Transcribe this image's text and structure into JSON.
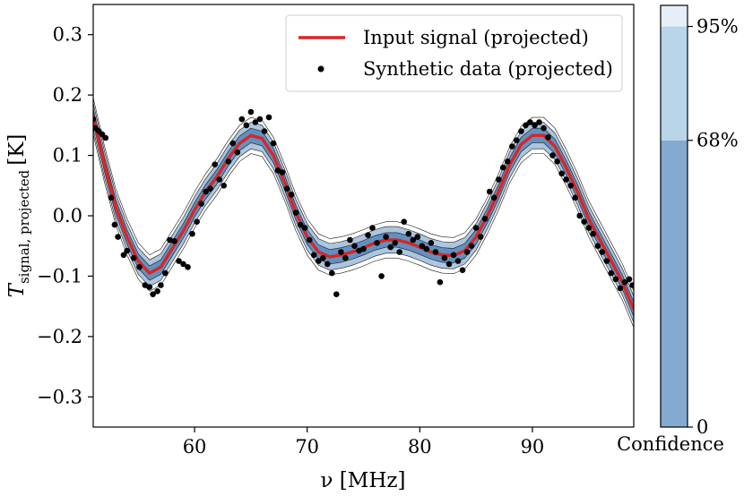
{
  "chart_data": {
    "type": "line",
    "xlabel": "ν [MHz]",
    "ylabel": {
      "main": "T",
      "subscript": "signal, projected",
      "unit": "[K]"
    },
    "xlim": [
      51,
      99
    ],
    "ylim": [
      -0.35,
      0.35
    ],
    "x_ticks": [
      {
        "value": 60,
        "label": "60"
      },
      {
        "value": 70,
        "label": "70"
      },
      {
        "value": 80,
        "label": "80"
      },
      {
        "value": 90,
        "label": "90"
      }
    ],
    "y_ticks": [
      {
        "value": 0.3,
        "label": "0.3"
      },
      {
        "value": 0.2,
        "label": "0.2"
      },
      {
        "value": 0.1,
        "label": "0.1"
      },
      {
        "value": 0.0,
        "label": "0.0"
      },
      {
        "value": -0.1,
        "label": "−0.1"
      },
      {
        "value": -0.2,
        "label": "−0.2"
      },
      {
        "value": -0.3,
        "label": "−0.3"
      }
    ],
    "grid": false,
    "legend_position": "top-right",
    "legend": [
      {
        "label": "Input signal (projected)",
        "kind": "line",
        "color": "#d62728"
      },
      {
        "label": "Synthetic data (projected)",
        "kind": "dot",
        "color": "#000000"
      }
    ],
    "series": [
      {
        "name": "Input signal (projected)",
        "color": "#d62728",
        "points": [
          [
            51.0,
            0.165
          ],
          [
            52.0,
            0.085
          ],
          [
            53.0,
            0.015
          ],
          [
            54.0,
            -0.035
          ],
          [
            55.0,
            -0.075
          ],
          [
            56.0,
            -0.095
          ],
          [
            57.0,
            -0.085
          ],
          [
            58.0,
            -0.055
          ],
          [
            59.0,
            -0.025
          ],
          [
            60.0,
            0.01
          ],
          [
            61.0,
            0.04
          ],
          [
            62.0,
            0.065
          ],
          [
            63.0,
            0.095
          ],
          [
            64.0,
            0.12
          ],
          [
            65.0,
            0.133
          ],
          [
            66.0,
            0.128
          ],
          [
            67.0,
            0.1
          ],
          [
            68.0,
            0.055
          ],
          [
            69.0,
            0.005
          ],
          [
            70.0,
            -0.035
          ],
          [
            71.0,
            -0.06
          ],
          [
            72.0,
            -0.068
          ],
          [
            73.0,
            -0.065
          ],
          [
            74.0,
            -0.06
          ],
          [
            75.0,
            -0.053
          ],
          [
            76.0,
            -0.045
          ],
          [
            77.0,
            -0.04
          ],
          [
            78.0,
            -0.04
          ],
          [
            79.0,
            -0.045
          ],
          [
            80.0,
            -0.052
          ],
          [
            81.0,
            -0.06
          ],
          [
            82.0,
            -0.065
          ],
          [
            83.0,
            -0.066
          ],
          [
            84.0,
            -0.058
          ],
          [
            85.0,
            -0.035
          ],
          [
            86.0,
            0.0
          ],
          [
            87.0,
            0.04
          ],
          [
            88.0,
            0.085
          ],
          [
            89.0,
            0.118
          ],
          [
            90.0,
            0.133
          ],
          [
            91.0,
            0.133
          ],
          [
            92.0,
            0.115
          ],
          [
            93.0,
            0.08
          ],
          [
            94.0,
            0.04
          ],
          [
            95.0,
            -0.005
          ],
          [
            96.0,
            -0.04
          ],
          [
            97.0,
            -0.075
          ],
          [
            98.0,
            -0.11
          ],
          [
            99.0,
            -0.155
          ]
        ]
      },
      {
        "name": "Synthetic data (projected)",
        "color": "#000000",
        "points": [
          [
            51.0,
            0.16
          ],
          [
            51.2,
            0.145
          ],
          [
            51.5,
            0.14
          ],
          [
            51.8,
            0.135
          ],
          [
            52.1,
            0.129
          ],
          [
            52.6,
            0.03
          ],
          [
            52.9,
            -0.015
          ],
          [
            53.2,
            -0.035
          ],
          [
            53.7,
            -0.065
          ],
          [
            54.0,
            -0.058
          ],
          [
            54.6,
            -0.07
          ],
          [
            55.1,
            -0.085
          ],
          [
            55.6,
            -0.115
          ],
          [
            56.0,
            -0.118
          ],
          [
            56.3,
            -0.13
          ],
          [
            56.7,
            -0.125
          ],
          [
            57.0,
            -0.115
          ],
          [
            57.4,
            -0.095
          ],
          [
            57.8,
            -0.04
          ],
          [
            58.2,
            -0.042
          ],
          [
            58.6,
            -0.075
          ],
          [
            59.0,
            -0.08
          ],
          [
            59.4,
            -0.085
          ],
          [
            59.8,
            -0.03
          ],
          [
            60.2,
            -0.01
          ],
          [
            60.6,
            0.02
          ],
          [
            61.0,
            0.04
          ],
          [
            61.4,
            0.045
          ],
          [
            61.8,
            0.085
          ],
          [
            62.2,
            0.06
          ],
          [
            62.6,
            0.05
          ],
          [
            63.0,
            0.09
          ],
          [
            63.4,
            0.12
          ],
          [
            63.8,
            0.105
          ],
          [
            64.2,
            0.16
          ],
          [
            64.6,
            0.15
          ],
          [
            65.0,
            0.172
          ],
          [
            65.4,
            0.155
          ],
          [
            65.8,
            0.16
          ],
          [
            66.2,
            0.14
          ],
          [
            66.6,
            0.163
          ],
          [
            67.0,
            0.12
          ],
          [
            67.4,
            0.075
          ],
          [
            67.8,
            0.072
          ],
          [
            68.2,
            0.045
          ],
          [
            68.6,
            0.035
          ],
          [
            69.0,
            0.005
          ],
          [
            69.4,
            -0.015
          ],
          [
            69.8,
            -0.02
          ],
          [
            70.2,
            -0.04
          ],
          [
            70.6,
            -0.065
          ],
          [
            71.0,
            -0.075
          ],
          [
            71.4,
            -0.07
          ],
          [
            71.8,
            -0.08
          ],
          [
            72.2,
            -0.095
          ],
          [
            72.6,
            -0.13
          ],
          [
            73.0,
            -0.06
          ],
          [
            73.4,
            -0.07
          ],
          [
            73.8,
            -0.04
          ],
          [
            74.2,
            -0.05
          ],
          [
            74.6,
            -0.058
          ],
          [
            75.0,
            -0.055
          ],
          [
            75.4,
            -0.032
          ],
          [
            75.8,
            -0.02
          ],
          [
            76.2,
            -0.045
          ],
          [
            76.6,
            -0.1
          ],
          [
            77.0,
            -0.035
          ],
          [
            77.4,
            -0.052
          ],
          [
            77.8,
            -0.045
          ],
          [
            78.2,
            -0.06
          ],
          [
            78.6,
            -0.01
          ],
          [
            79.0,
            -0.03
          ],
          [
            79.4,
            -0.04
          ],
          [
            79.8,
            -0.035
          ],
          [
            80.2,
            -0.05
          ],
          [
            80.6,
            -0.055
          ],
          [
            81.0,
            -0.045
          ],
          [
            81.4,
            -0.06
          ],
          [
            81.8,
            -0.11
          ],
          [
            82.2,
            -0.07
          ],
          [
            82.6,
            -0.08
          ],
          [
            83.0,
            -0.065
          ],
          [
            83.4,
            -0.075
          ],
          [
            83.8,
            -0.09
          ],
          [
            84.2,
            -0.06
          ],
          [
            84.6,
            -0.05
          ],
          [
            85.0,
            -0.02
          ],
          [
            85.4,
            -0.035
          ],
          [
            85.8,
            -0.005
          ],
          [
            86.2,
            0.04
          ],
          [
            86.6,
            0.03
          ],
          [
            87.0,
            0.06
          ],
          [
            87.4,
            0.08
          ],
          [
            87.8,
            0.09
          ],
          [
            88.2,
            0.115
          ],
          [
            88.6,
            0.125
          ],
          [
            89.0,
            0.14
          ],
          [
            89.4,
            0.15
          ],
          [
            89.8,
            0.155
          ],
          [
            90.2,
            0.15
          ],
          [
            90.6,
            0.155
          ],
          [
            91.0,
            0.145
          ],
          [
            91.4,
            0.13
          ],
          [
            91.8,
            0.1
          ],
          [
            92.2,
            0.09
          ],
          [
            92.6,
            0.07
          ],
          [
            93.0,
            0.06
          ],
          [
            93.4,
            0.05
          ],
          [
            93.8,
            0.03
          ],
          [
            94.2,
            0.0
          ],
          [
            94.6,
            -0.01
          ],
          [
            95.0,
            -0.02
          ],
          [
            95.4,
            -0.03
          ],
          [
            95.8,
            -0.05
          ],
          [
            96.2,
            -0.06
          ],
          [
            96.6,
            -0.075
          ],
          [
            97.0,
            -0.095
          ],
          [
            97.4,
            -0.105
          ],
          [
            97.8,
            -0.12
          ],
          [
            98.2,
            -0.11
          ],
          [
            98.6,
            -0.105
          ],
          [
            98.9,
            -0.115
          ]
        ]
      }
    ],
    "confidence_band": {
      "color": "#4a7fb5",
      "inner_halfwidth_68": 0.012,
      "outer_halfwidth_95": 0.022,
      "contour_offsets": [
        0.012,
        0.022,
        0.03
      ]
    },
    "colorbar": {
      "label": "Confidence",
      "ticks": [
        {
          "value": 0.0,
          "label": "0"
        },
        {
          "value": 0.68,
          "label": "68%"
        },
        {
          "value": 0.95,
          "label": "95%"
        }
      ],
      "segments": [
        {
          "from": 0.0,
          "to": 0.68,
          "color": "#85aad0"
        },
        {
          "from": 0.68,
          "to": 0.95,
          "color": "#b9d5ea"
        },
        {
          "from": 0.95,
          "to": 1.0,
          "color": "#e6eff8"
        }
      ]
    }
  }
}
